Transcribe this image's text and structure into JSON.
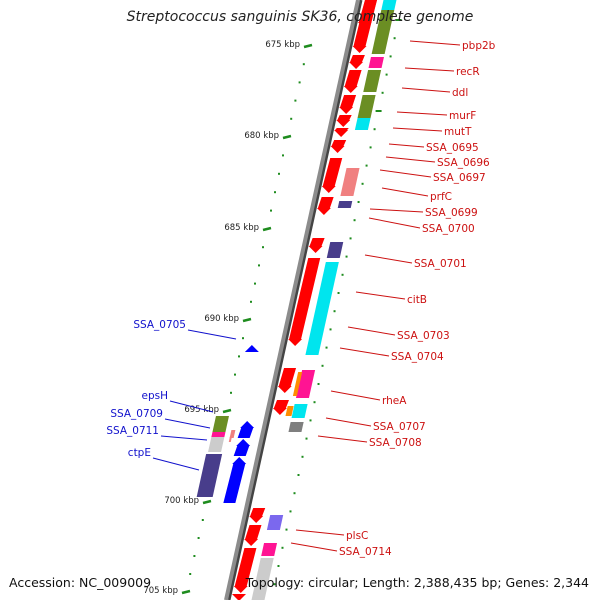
{
  "title": "Streptococcus sanguinis SK36, complete genome",
  "footer": {
    "accession": "Accession: NC_009009",
    "summary": "Topology: circular; Length: 2,388,435 bp; Genes: 2,344"
  },
  "colors": {
    "backbone": "#8c8c8c",
    "tick": "#1e8c1e",
    "label_forward": "#cc1111",
    "label_reverse": "#1111cc",
    "cds_forward": "#ff0000",
    "cds_reverse": "#0000ff",
    "cog_olive": "#6b8e23",
    "cog_cyan": "#00e5ee",
    "cog_magenta": "#ff1493",
    "cog_pink": "#f08080",
    "cog_navy": "#483d8b",
    "cog_slate": "#7b68ee",
    "cog_gray": "#7f7f7f",
    "cog_orange": "#ff8c00"
  },
  "kbp_ticks": [
    "675 kbp",
    "680 kbp",
    "685 kbp",
    "690 kbp",
    "695 kbp",
    "700 kbp",
    "705 kbp"
  ],
  "genes_forward": [
    "pbp2b",
    "recR",
    "ddl",
    "murF",
    "mutT",
    "SSA_0695",
    "SSA_0696",
    "SSA_0697",
    "prfC",
    "SSA_0699",
    "SSA_0700",
    "SSA_0701",
    "citB",
    "SSA_0703",
    "SSA_0704",
    "rheA",
    "SSA_0707",
    "SSA_0708",
    "plsC",
    "SSA_0714"
  ],
  "genes_reverse": [
    "SSA_0705",
    "epsH",
    "SSA_0709",
    "SSA_0711",
    "ctpE"
  ]
}
